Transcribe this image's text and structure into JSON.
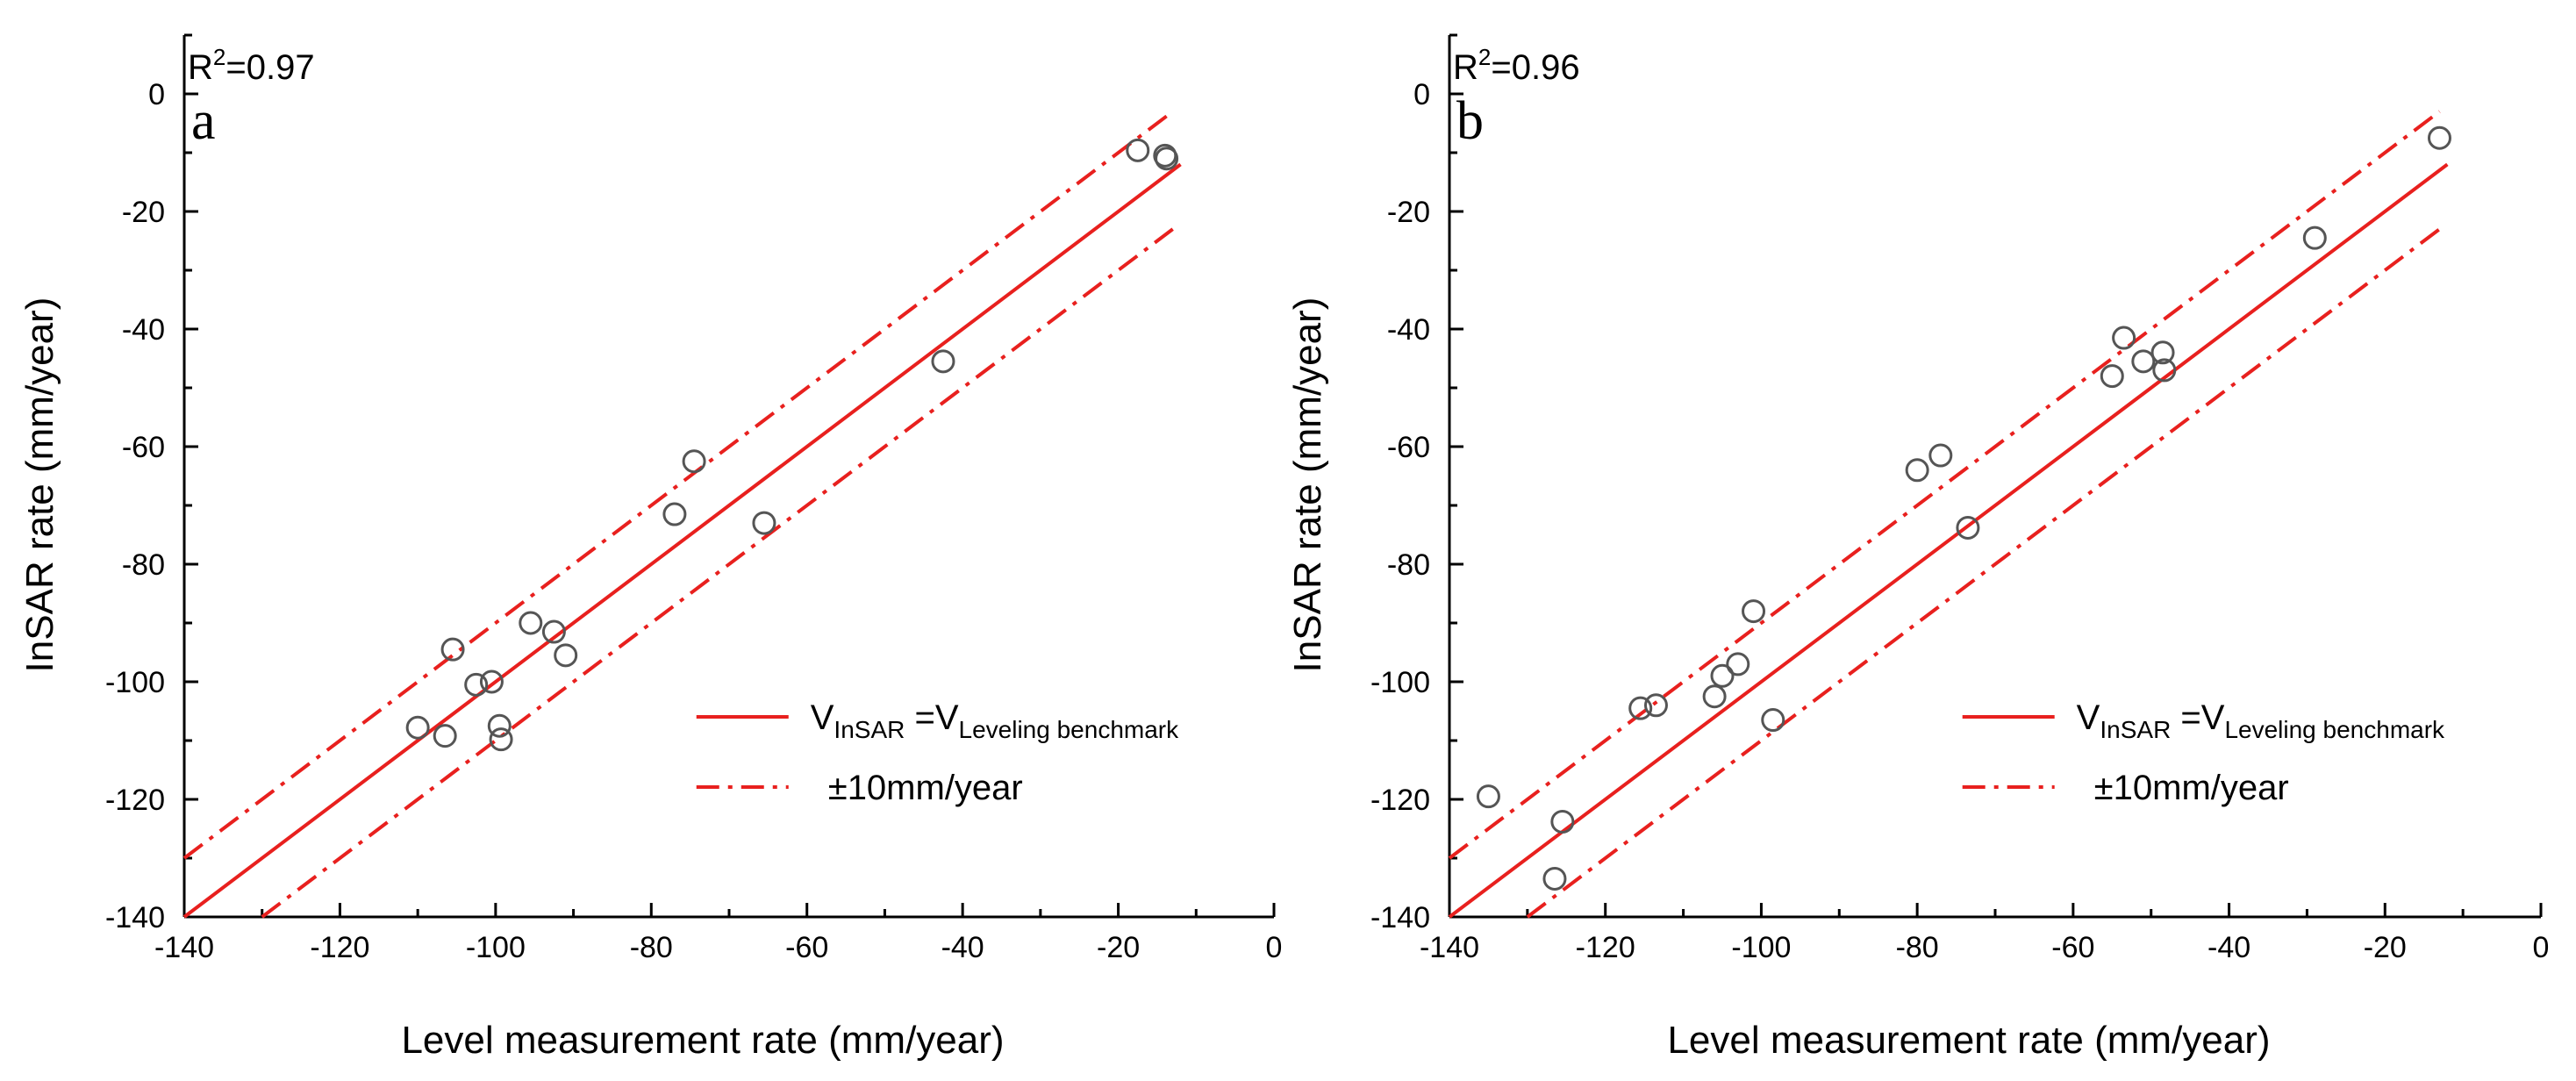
{
  "colors": {
    "fit_line": "#e8201e",
    "marker_stroke": "#555555",
    "axis": "#000000"
  },
  "chart_data": [
    {
      "type": "scatter",
      "panel_label": "a",
      "annotation": {
        "prefix": "R",
        "sup": "2",
        "value": "=0.97"
      },
      "xlabel": "Level measurement rate (mm/year)",
      "ylabel": "InSAR rate (mm/year)",
      "xlim": [
        -140,
        0
      ],
      "ylim": [
        -140,
        10
      ],
      "xticks": [
        -140,
        -120,
        -100,
        -80,
        -60,
        -40,
        -20,
        0
      ],
      "yticks": [
        -140,
        -120,
        -100,
        -80,
        -60,
        -40,
        -20,
        0
      ],
      "grid": false,
      "legend_position": "bottom-right",
      "lines": [
        {
          "name": "V_InSAR = V_Leveling benchmark",
          "style": "solid",
          "offset": 0,
          "x_range": [
            -140,
            -12
          ]
        },
        {
          "name": "±10mm/year",
          "style": "dashdot",
          "offset": 10,
          "x_range": [
            -140,
            -13
          ]
        },
        {
          "name": "±10mm/year",
          "style": "dashdot",
          "offset": -10,
          "x_range": [
            -130,
            -13
          ]
        }
      ],
      "legend": [
        {
          "style": "solid",
          "main": "V",
          "sub1": "InSAR",
          "mid": " =V",
          "sub2": "Leveling benchmark"
        },
        {
          "style": "dashdot",
          "main": "±10mm/year"
        }
      ],
      "points": [
        {
          "x": -17.5,
          "y": -9.6
        },
        {
          "x": -14,
          "y": -10.5
        },
        {
          "x": -13.8,
          "y": -11
        },
        {
          "x": -42.5,
          "y": -45.5
        },
        {
          "x": -74.5,
          "y": -62.5
        },
        {
          "x": -77,
          "y": -71.5
        },
        {
          "x": -65.5,
          "y": -73
        },
        {
          "x": -95.5,
          "y": -90
        },
        {
          "x": -92.5,
          "y": -91.5
        },
        {
          "x": -91,
          "y": -95.5
        },
        {
          "x": -105.5,
          "y": -94.5
        },
        {
          "x": -102.5,
          "y": -100.5
        },
        {
          "x": -100.5,
          "y": -100
        },
        {
          "x": -99.5,
          "y": -107.5
        },
        {
          "x": -99.3,
          "y": -109.8
        },
        {
          "x": -110,
          "y": -107.8
        },
        {
          "x": -106.5,
          "y": -109.2
        }
      ]
    },
    {
      "type": "scatter",
      "panel_label": "b",
      "annotation": {
        "prefix": "R",
        "sup": "2",
        "value": "=0.96"
      },
      "xlabel": "Level measurement rate (mm/year)",
      "ylabel": "InSAR rate (mm/year)",
      "xlim": [
        -140,
        0
      ],
      "ylim": [
        -140,
        10
      ],
      "xticks": [
        -140,
        -120,
        -100,
        -80,
        -60,
        -40,
        -20,
        0
      ],
      "yticks": [
        -140,
        -120,
        -100,
        -80,
        -60,
        -40,
        -20,
        0
      ],
      "grid": false,
      "legend_position": "bottom-right",
      "lines": [
        {
          "name": "V_InSAR = V_Leveling benchmark",
          "style": "solid",
          "offset": 0,
          "x_range": [
            -140,
            -12
          ]
        },
        {
          "name": "±10mm/year",
          "style": "dashdot",
          "offset": 10,
          "x_range": [
            -140,
            -13
          ]
        },
        {
          "name": "±10mm/year",
          "style": "dashdot",
          "offset": -10,
          "x_range": [
            -130,
            -13
          ]
        }
      ],
      "legend": [
        {
          "style": "solid",
          "main": "V",
          "sub1": "InSAR",
          "mid": " =V",
          "sub2": "Leveling benchmark"
        },
        {
          "style": "dashdot",
          "main": "±10mm/year"
        }
      ],
      "points": [
        {
          "x": -13,
          "y": -7.5
        },
        {
          "x": -29,
          "y": -24.5
        },
        {
          "x": -53.5,
          "y": -41.5
        },
        {
          "x": -51,
          "y": -45.5
        },
        {
          "x": -48.5,
          "y": -44
        },
        {
          "x": -48.3,
          "y": -47
        },
        {
          "x": -55,
          "y": -48
        },
        {
          "x": -80,
          "y": -64
        },
        {
          "x": -77,
          "y": -61.5
        },
        {
          "x": -73.5,
          "y": -73.8
        },
        {
          "x": -101,
          "y": -88
        },
        {
          "x": -103,
          "y": -97
        },
        {
          "x": -105,
          "y": -99
        },
        {
          "x": -106,
          "y": -102.5
        },
        {
          "x": -98.5,
          "y": -106.5
        },
        {
          "x": -115.5,
          "y": -104.5
        },
        {
          "x": -113.5,
          "y": -104
        },
        {
          "x": -135,
          "y": -119.5
        },
        {
          "x": -125.5,
          "y": -123.8
        },
        {
          "x": -126.5,
          "y": -133.5
        }
      ]
    }
  ]
}
